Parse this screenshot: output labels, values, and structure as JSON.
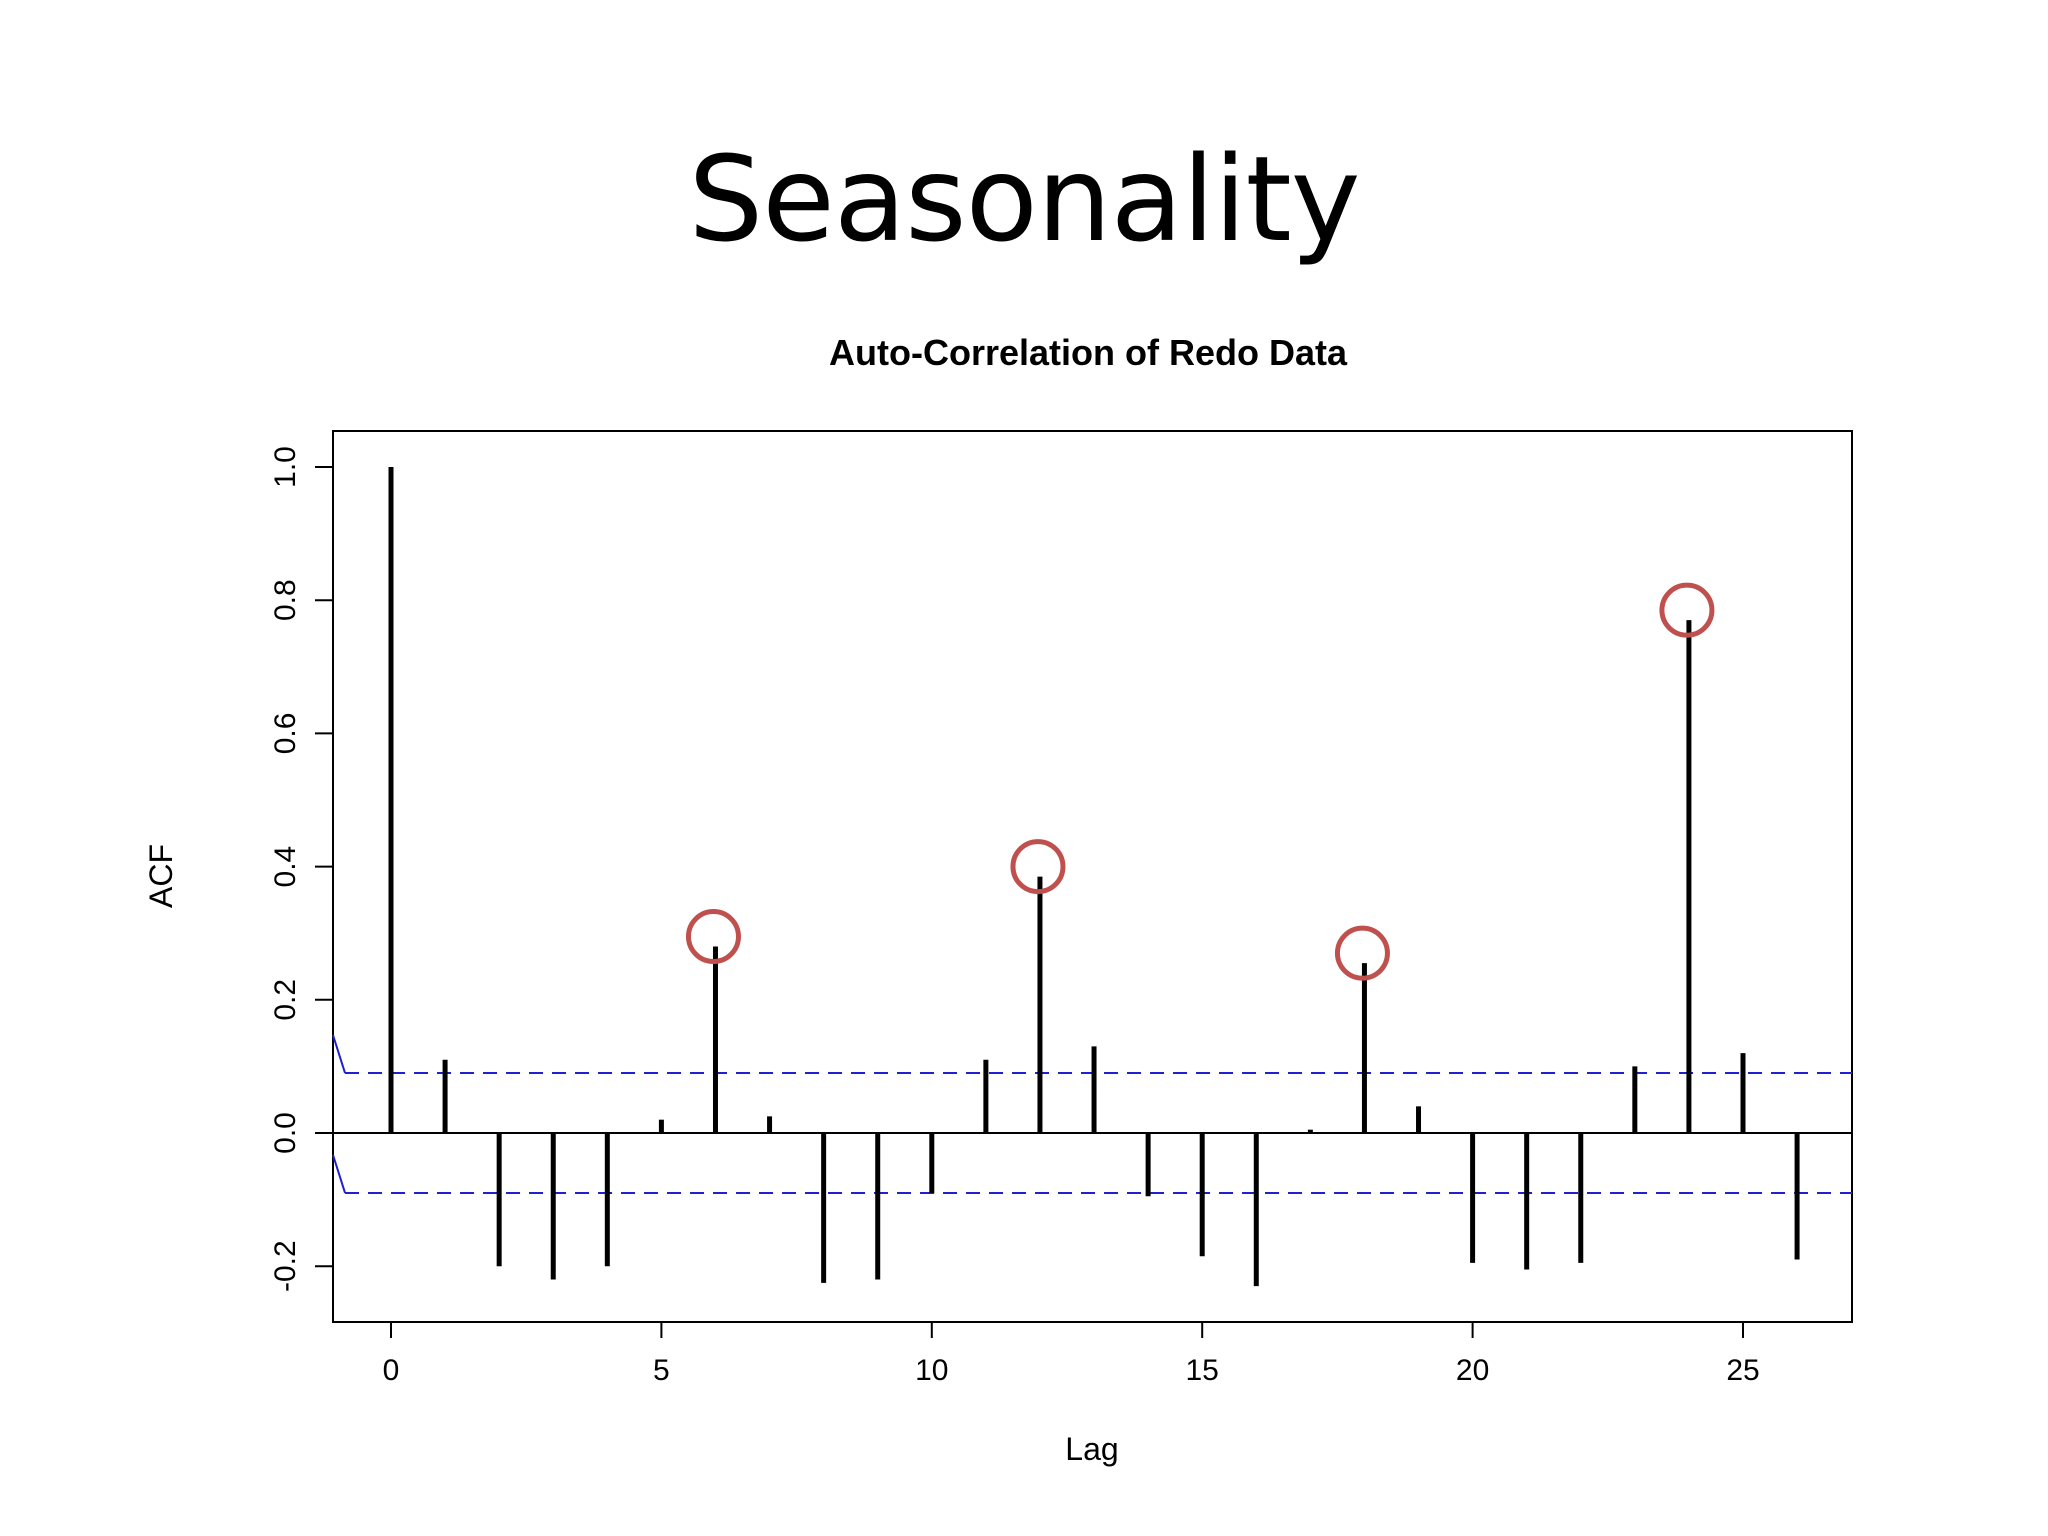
{
  "slide": {
    "title": "Seasonality"
  },
  "colors": {
    "bar": "#000000",
    "confidence_line": "#2020d0",
    "highlight_circle": "#c0504d",
    "frame": "#000000"
  },
  "chart_data": {
    "type": "bar",
    "title": "Auto-Correlation of Redo Data",
    "xlabel": "Lag",
    "ylabel": "ACF",
    "xlim": [
      -1,
      27
    ],
    "ylim": [
      -0.28,
      1.05
    ],
    "xticks": [
      0,
      5,
      10,
      15,
      20,
      25
    ],
    "yticks": [
      -0.2,
      0.0,
      0.2,
      0.4,
      0.6,
      0.8,
      1.0
    ],
    "ytick_labels": [
      "-0.2",
      "0.0",
      "0.2",
      "0.4",
      "0.6",
      "0.8",
      "1.0"
    ],
    "lags": [
      0,
      1,
      2,
      3,
      4,
      5,
      6,
      7,
      8,
      9,
      10,
      11,
      12,
      13,
      14,
      15,
      16,
      17,
      18,
      19,
      20,
      21,
      22,
      23,
      24,
      25,
      26
    ],
    "values": [
      1.0,
      0.11,
      -0.2,
      -0.22,
      -0.2,
      0.02,
      0.28,
      0.025,
      -0.225,
      -0.22,
      -0.09,
      0.11,
      0.385,
      0.13,
      -0.095,
      -0.185,
      -0.23,
      0.005,
      0.255,
      0.04,
      -0.195,
      -0.205,
      -0.195,
      0.1,
      0.77,
      0.12,
      -0.19
    ],
    "confidence_bound": 0.09,
    "highlighted_lags": [
      6,
      12,
      18,
      24
    ],
    "grid": false
  }
}
